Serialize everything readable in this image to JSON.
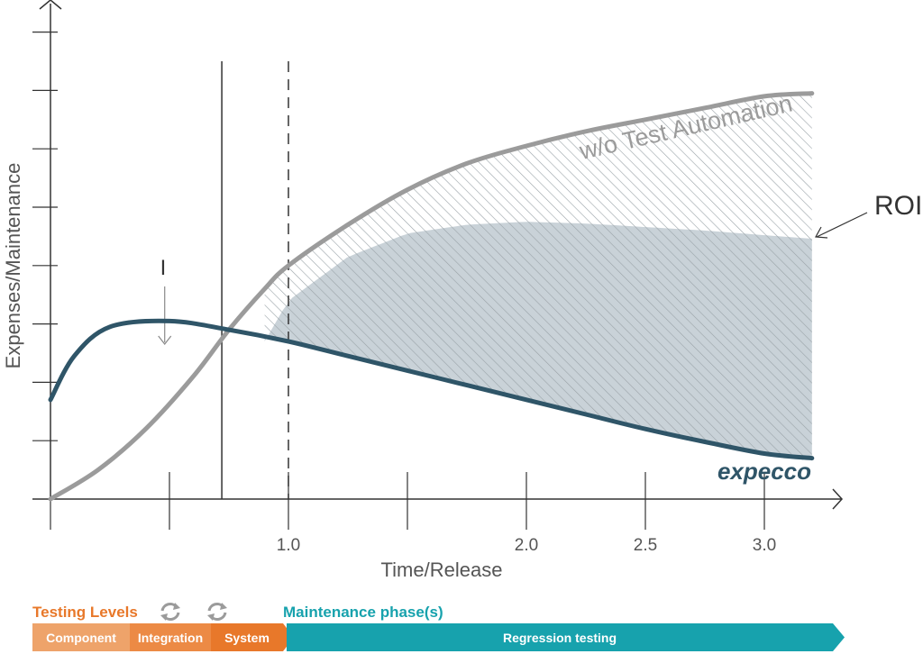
{
  "chart_data": {
    "type": "line",
    "title": "",
    "xlabel": "Time/Release",
    "ylabel": "Expenses/Maintenance",
    "x_ticks": [
      {
        "x": 0.5,
        "label": ""
      },
      {
        "x": 1.0,
        "label": "1.0"
      },
      {
        "x": 1.5,
        "label": ""
      },
      {
        "x": 2.0,
        "label": "2.0"
      },
      {
        "x": 2.5,
        "label": "2.5"
      },
      {
        "x": 3.0,
        "label": "3.0"
      }
    ],
    "xlim": [
      0.0,
      3.3
    ],
    "ylim": [
      0,
      8.3
    ],
    "y_tick_count": 8,
    "grid": false,
    "series": [
      {
        "name": "w/o Test Automation",
        "color": "#9b9b9b",
        "x": [
          0.0,
          0.2,
          0.4,
          0.6,
          0.75,
          0.9,
          1.0,
          1.25,
          1.5,
          1.75,
          2.0,
          2.25,
          2.5,
          2.75,
          3.0,
          3.2
        ],
        "y": [
          0.0,
          0.5,
          1.2,
          2.1,
          2.9,
          3.6,
          4.0,
          4.7,
          5.3,
          5.75,
          6.05,
          6.3,
          6.5,
          6.7,
          6.9,
          6.95
        ]
      },
      {
        "name": "expecco",
        "color": "#2f5568",
        "x": [
          0.0,
          0.1,
          0.25,
          0.5,
          0.75,
          1.0,
          1.25,
          1.5,
          1.75,
          2.0,
          2.25,
          2.5,
          2.75,
          3.0,
          3.2
        ],
        "y": [
          1.7,
          2.45,
          2.95,
          3.05,
          2.9,
          2.7,
          2.45,
          2.2,
          1.95,
          1.7,
          1.45,
          1.2,
          0.98,
          0.78,
          0.7
        ]
      }
    ],
    "roi_band": {
      "label": "ROI",
      "x": [
        0.9,
        1.0,
        1.25,
        1.5,
        1.75,
        2.0,
        2.25,
        2.5,
        2.75,
        3.0,
        3.2
      ],
      "y_top_solid": [
        2.7,
        3.4,
        4.15,
        4.55,
        4.7,
        4.75,
        4.72,
        4.66,
        4.6,
        4.52,
        4.46
      ]
    },
    "markers": {
      "solid_vline_x": 0.72,
      "dashed_vline_x": 1.0,
      "arrow_x": 0.48,
      "arrow_label": "I"
    },
    "colors": {
      "axis": "#333333",
      "hatch": "#9aa3a8",
      "roi_fill": "#c9d2d8"
    }
  },
  "legend": {
    "levels_title": "Testing Levels",
    "maintenance_title": "Maintenance phase(s)",
    "levels": [
      "Component",
      "Integration",
      "System"
    ],
    "regression": "Regression testing",
    "colors": {
      "orange": "#e8782a",
      "orange_light": "#eea36a",
      "orange_mid": "#ec8a45",
      "teal": "#17a2ad",
      "icon": "#9b9b9b"
    },
    "icons": [
      "cycle-icon",
      "cycle-icon"
    ]
  }
}
